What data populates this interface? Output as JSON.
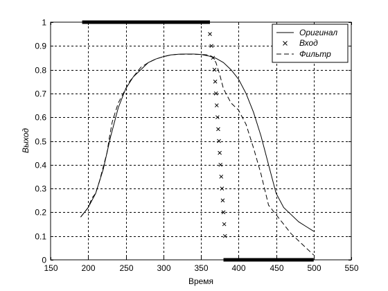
{
  "chart_data": {
    "type": "line",
    "xlabel": "Время",
    "ylabel": "Выход",
    "xlim": [
      150,
      550
    ],
    "ylim": [
      0,
      1
    ],
    "xticks": [
      150,
      200,
      250,
      300,
      350,
      400,
      450,
      500,
      550
    ],
    "yticks": [
      0,
      0.1,
      0.2,
      0.3,
      0.4,
      0.5,
      0.6,
      0.7,
      0.8,
      0.9,
      1
    ],
    "grid": true,
    "legend_position": "top-right",
    "series": [
      {
        "name": "Оригинал",
        "style": "solid",
        "x": [
          190,
          200,
          210,
          220,
          230,
          240,
          250,
          260,
          270,
          280,
          290,
          300,
          310,
          320,
          330,
          340,
          350,
          360,
          370,
          380,
          390,
          400,
          410,
          420,
          430,
          440,
          450,
          460,
          470,
          480,
          490,
          500
        ],
        "y": [
          0.18,
          0.22,
          0.28,
          0.38,
          0.52,
          0.64,
          0.72,
          0.77,
          0.8,
          0.83,
          0.845,
          0.855,
          0.862,
          0.865,
          0.866,
          0.866,
          0.864,
          0.858,
          0.848,
          0.83,
          0.8,
          0.76,
          0.7,
          0.62,
          0.52,
          0.4,
          0.28,
          0.22,
          0.19,
          0.16,
          0.14,
          0.12
        ]
      },
      {
        "name": "Вход",
        "style": "markers-x",
        "x": [
          362,
          364,
          366,
          368,
          369,
          370,
          371,
          372,
          373,
          374,
          375,
          376,
          377,
          378,
          379,
          380,
          381,
          382
        ],
        "y": [
          0.95,
          0.9,
          0.85,
          0.8,
          0.75,
          0.7,
          0.65,
          0.6,
          0.55,
          0.5,
          0.45,
          0.4,
          0.35,
          0.3,
          0.25,
          0.2,
          0.15,
          0.1
        ]
      },
      {
        "name": "Фильтр",
        "style": "dashed",
        "x": [
          190,
          200,
          205,
          210,
          215,
          220,
          225,
          228,
          232,
          236,
          240,
          245,
          250,
          255,
          260,
          265,
          270,
          280,
          290,
          300,
          310,
          320,
          330,
          340,
          350,
          360,
          365,
          370,
          375,
          380,
          390,
          400,
          410,
          420,
          430,
          440,
          450,
          460,
          470,
          480,
          490,
          500
        ],
        "y": [
          0.18,
          0.22,
          0.26,
          0.28,
          0.33,
          0.39,
          0.45,
          0.51,
          0.58,
          0.62,
          0.66,
          0.69,
          0.72,
          0.75,
          0.77,
          0.79,
          0.81,
          0.83,
          0.845,
          0.855,
          0.862,
          0.865,
          0.865,
          0.865,
          0.864,
          0.862,
          0.855,
          0.83,
          0.78,
          0.72,
          0.66,
          0.63,
          0.57,
          0.47,
          0.36,
          0.23,
          0.19,
          0.15,
          0.11,
          0.08,
          0.05,
          0.02
        ]
      }
    ],
    "highlight_bars": [
      {
        "y": 1,
        "x_start": 192,
        "x_end": 362
      },
      {
        "y": 0,
        "x_start": 380,
        "x_end": 500
      }
    ]
  }
}
